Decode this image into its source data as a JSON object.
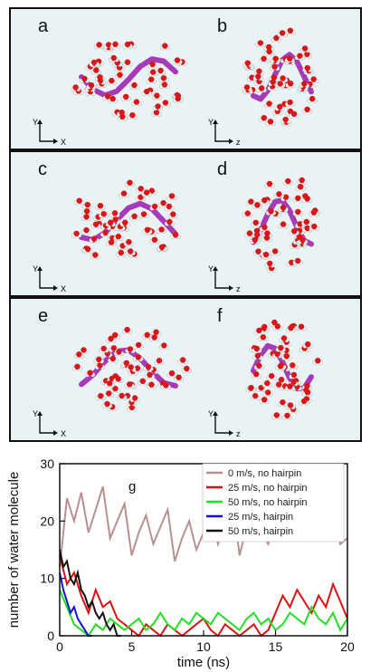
{
  "panels": [
    {
      "left_label": "a",
      "right_label": "b",
      "left_axes": [
        "Y",
        "X"
      ],
      "right_axes": [
        "Y",
        "z"
      ]
    },
    {
      "left_label": "c",
      "right_label": "d",
      "left_axes": [
        "Y",
        "X"
      ],
      "right_axes": [
        "Y",
        "z"
      ]
    },
    {
      "left_label": "e",
      "right_label": "f",
      "left_axes": [
        "Y",
        "X"
      ],
      "right_axes": [
        "Y",
        "z"
      ]
    }
  ],
  "colors": {
    "panel_bg": "#e9f3f6",
    "water_o": "#d81818",
    "water_h": "#f4f4f4",
    "protein": "#a63ab8"
  },
  "chart_data": {
    "type": "line",
    "panel_label": "g",
    "xlabel": "time (ns)",
    "ylabel": "number of water molecule",
    "xlim": [
      0,
      20
    ],
    "ylim": [
      0,
      30
    ],
    "xticks": [
      0,
      5,
      10,
      15,
      20
    ],
    "yticks": [
      0,
      10,
      20,
      30
    ],
    "legend_position": "top-right",
    "series": [
      {
        "name": "0 m/s, no hairpin",
        "color": "#b89090",
        "x": [
          0,
          0.5,
          1,
          1.5,
          2,
          2.5,
          3,
          3.5,
          4,
          4.5,
          5,
          5.5,
          6,
          6.5,
          7,
          7.5,
          8,
          8.5,
          9,
          9.5,
          10,
          10.5,
          11,
          11.5,
          12,
          12.5,
          13,
          13.5,
          14,
          14.5,
          15,
          15.5,
          16,
          16.5,
          17,
          17.5,
          18,
          18.5,
          19,
          19.5,
          20
        ],
        "y": [
          12,
          24,
          20,
          25,
          18,
          22,
          26,
          17,
          20,
          23,
          14,
          18,
          21,
          16,
          19,
          22,
          13,
          17,
          20,
          15,
          18,
          21,
          16,
          20,
          24,
          14,
          19,
          22,
          18,
          16,
          20,
          23,
          19,
          21,
          17,
          20,
          22,
          19,
          24,
          16,
          17
        ]
      },
      {
        "name": "25 m/s, no hairpin",
        "color": "#e01010",
        "x": [
          0,
          0.5,
          1,
          1.5,
          2,
          2.5,
          3,
          3.5,
          4,
          4.5,
          5,
          5.5,
          6,
          6.5,
          7,
          7.5,
          8,
          8.5,
          9,
          9.5,
          10,
          10.5,
          11,
          11.5,
          12,
          12.5,
          13,
          13.5,
          14,
          14.5,
          15,
          15.5,
          16,
          16.5,
          17,
          17.5,
          18,
          18.5,
          19,
          19.5,
          20
        ],
        "y": [
          14,
          9,
          11,
          7,
          4,
          8,
          5,
          6,
          3,
          2,
          1,
          0,
          2,
          1,
          0,
          2,
          1,
          0,
          1,
          2,
          3,
          1,
          0,
          2,
          1,
          0,
          1,
          2,
          0,
          1,
          4,
          7,
          5,
          8,
          6,
          4,
          7,
          5,
          9,
          6,
          3
        ]
      },
      {
        "name": "50 m/s, no hairpin",
        "color": "#22e022",
        "x": [
          0,
          0.5,
          1,
          1.5,
          2,
          2.5,
          3,
          3.5,
          4,
          4.5,
          5,
          5.5,
          6,
          6.5,
          7,
          7.5,
          8,
          8.5,
          9,
          9.5,
          10,
          10.5,
          11,
          11.5,
          12,
          12.5,
          13,
          13.5,
          14,
          14.5,
          15,
          15.5,
          16,
          16.5,
          17,
          17.5,
          18,
          18.5,
          19,
          19.5,
          20
        ],
        "y": [
          8,
          5,
          2,
          1,
          0,
          2,
          1,
          3,
          2,
          1,
          2,
          3,
          1,
          2,
          4,
          2,
          1,
          3,
          2,
          4,
          3,
          2,
          4,
          3,
          2,
          1,
          3,
          4,
          2,
          3,
          1,
          2,
          4,
          3,
          2,
          5,
          3,
          2,
          4,
          1,
          3
        ]
      },
      {
        "name": "25 m/s,  hairpin",
        "color": "#1010e0",
        "x": [
          0,
          0.25,
          0.5,
          0.75,
          1,
          1.25,
          1.5,
          1.75,
          2,
          2.25
        ],
        "y": [
          11,
          8,
          6,
          4,
          5,
          3,
          2,
          1,
          0,
          0
        ]
      },
      {
        "name": "50 m/s, hairpin",
        "color": "#111111",
        "x": [
          0,
          0.25,
          0.5,
          0.75,
          1,
          1.25,
          1.5,
          1.75,
          2,
          2.25,
          2.5,
          2.75,
          3,
          3.25,
          3.5,
          3.75,
          4,
          4.25
        ],
        "y": [
          15,
          12,
          13,
          10,
          9,
          11,
          8,
          7,
          5,
          6,
          4,
          3,
          4,
          2,
          1,
          2,
          0,
          0
        ]
      }
    ]
  }
}
